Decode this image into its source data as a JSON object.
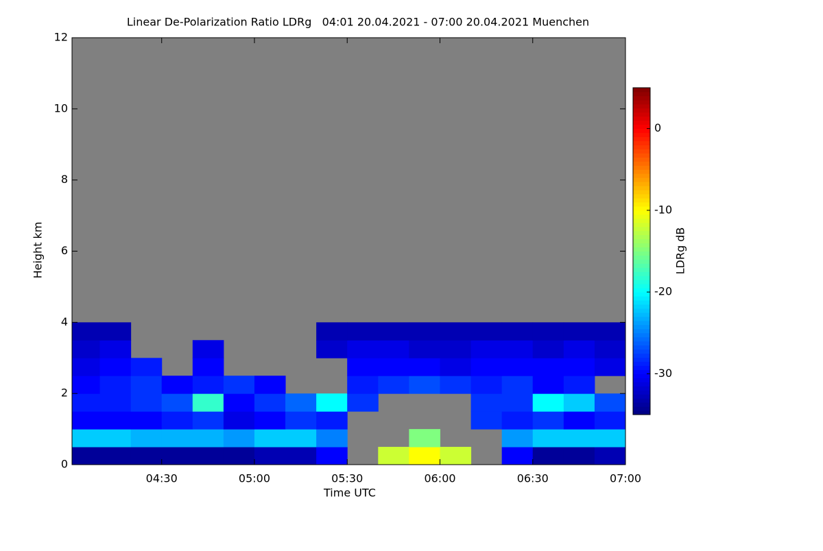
{
  "chart_data": {
    "type": "heatmap",
    "title": "Linear De-Polarization Ratio LDRg   04:01 20.04.2021 - 07:00 20.04.2021 Muenchen",
    "x_label": "Time UTC",
    "y_label": "Height km",
    "colorbar_label": "LDRg dB",
    "x": [
      4.0833,
      4.25,
      4.4167,
      4.5833,
      4.75,
      4.9167,
      5.0833,
      5.25,
      5.4167,
      5.5833,
      5.75,
      5.9167,
      6.0833,
      6.25,
      6.4167,
      6.5833,
      6.75,
      6.9167
    ],
    "y": [
      0.25,
      0.75,
      1.25,
      1.75,
      2.25,
      2.75,
      3.25,
      3.75
    ],
    "values": [
      [
        -34,
        -34,
        -34,
        -34,
        -34,
        -34,
        -33,
        -33,
        -30,
        null,
        -12,
        -10,
        -12,
        null,
        -30,
        -34,
        -34,
        -33
      ],
      [
        -22,
        -22,
        -23,
        -23,
        -23,
        -24,
        -22,
        -22,
        -25,
        null,
        null,
        -15,
        null,
        null,
        -24,
        -22,
        -22,
        -22
      ],
      [
        -30,
        -30,
        -30,
        -29,
        -28,
        -31,
        -30,
        -28,
        -29,
        null,
        null,
        null,
        null,
        -28,
        -29,
        -28,
        -30,
        -29
      ],
      [
        -29,
        -29,
        -28,
        -27,
        -18,
        -30,
        -28,
        -26,
        -20,
        -28,
        null,
        null,
        null,
        -28,
        -28,
        -20,
        -22,
        -27
      ],
      [
        -30,
        -29,
        -28,
        -30,
        -29,
        -28,
        -30,
        null,
        null,
        -29,
        -28,
        -27,
        -28,
        -29,
        -28,
        -30,
        -29,
        null
      ],
      [
        -31,
        -30,
        -29,
        null,
        -30,
        null,
        null,
        null,
        null,
        -30,
        -30,
        -30,
        -31,
        -30,
        -30,
        -30,
        -30,
        -31
      ],
      [
        -32,
        -31,
        null,
        null,
        -31,
        null,
        null,
        null,
        -32,
        -31,
        -31,
        -32,
        -32,
        -31,
        -31,
        -32,
        -31,
        -32
      ],
      [
        -33,
        -33,
        null,
        null,
        null,
        null,
        null,
        null,
        -33,
        -33,
        -33,
        -33,
        -33,
        -33,
        -33,
        -33,
        -33,
        -33
      ]
    ],
    "xlim": [
      4.0167,
      7.0
    ],
    "xticks": [
      {
        "value": 4.5,
        "label": "04:30"
      },
      {
        "value": 5.0,
        "label": "05:00"
      },
      {
        "value": 5.5,
        "label": "05:30"
      },
      {
        "value": 6.0,
        "label": "06:00"
      },
      {
        "value": 6.5,
        "label": "06:30"
      },
      {
        "value": 7.0,
        "label": "07:00"
      }
    ],
    "ylim": [
      0,
      12
    ],
    "yticks": [
      0,
      2,
      4,
      6,
      8,
      10,
      12
    ],
    "zlim": [
      -35,
      5
    ],
    "zticks": [
      0,
      -10,
      -20,
      -30
    ],
    "missing_color": "#808080",
    "colormap": "jet"
  }
}
